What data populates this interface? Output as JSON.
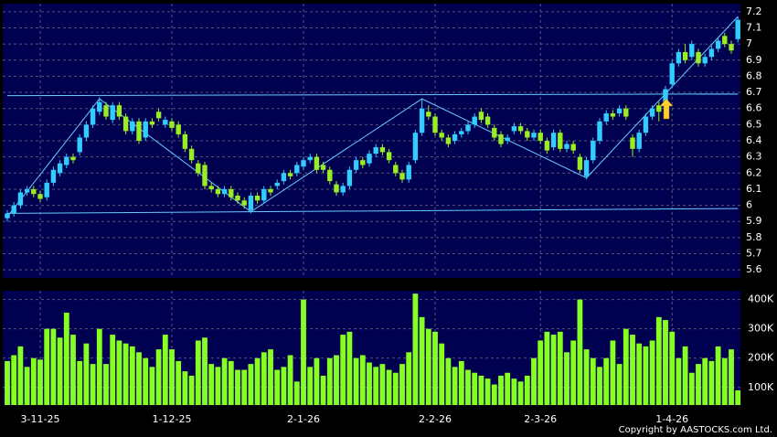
{
  "chart_data": [
    {
      "type": "candlestick",
      "categories": [
        null,
        null,
        null,
        null,
        null,
        "3-11-25",
        null,
        null,
        null,
        null,
        null,
        null,
        null,
        null,
        null,
        null,
        null,
        null,
        null,
        null,
        null,
        null,
        null,
        null,
        null,
        "1-12-25",
        null,
        null,
        null,
        null,
        null,
        null,
        null,
        null,
        null,
        null,
        null,
        null,
        null,
        null,
        null,
        null,
        null,
        null,
        null,
        "2-1-26",
        null,
        null,
        null,
        null,
        null,
        null,
        null,
        null,
        null,
        null,
        null,
        null,
        null,
        null,
        null,
        null,
        null,
        null,
        null,
        "2-2-26",
        null,
        null,
        null,
        null,
        null,
        null,
        null,
        null,
        null,
        null,
        null,
        null,
        null,
        null,
        null,
        "2-3-26",
        null,
        null,
        null,
        null,
        null,
        null,
        null,
        null,
        null,
        null,
        null,
        null,
        null,
        null,
        null,
        null,
        null,
        null,
        null,
        "1-4-26",
        null,
        null,
        null,
        null,
        null,
        null,
        null,
        null,
        null,
        null
      ],
      "open": [
        5.92,
        5.95,
        6.0,
        6.08,
        6.1,
        6.07,
        6.05,
        6.14,
        6.2,
        6.25,
        6.3,
        6.33,
        6.42,
        6.5,
        6.58,
        6.62,
        6.53,
        6.62,
        6.55,
        6.46,
        6.52,
        6.42,
        6.52,
        6.58,
        6.5,
        6.52,
        6.5,
        6.44,
        6.35,
        6.26,
        6.25,
        6.12,
        6.1,
        6.07,
        6.1,
        6.06,
        6.03,
        5.97,
        6.06,
        6.03,
        6.1,
        6.12,
        6.15,
        6.2,
        6.2,
        6.24,
        6.28,
        6.3,
        6.25,
        6.22,
        6.13,
        6.08,
        6.12,
        6.22,
        6.28,
        6.26,
        6.32,
        6.36,
        6.33,
        6.25,
        6.2,
        6.16,
        6.28,
        6.45,
        6.58,
        6.55,
        6.45,
        6.42,
        6.4,
        6.44,
        6.46,
        6.5,
        6.58,
        6.55,
        6.48,
        6.44,
        6.4,
        6.46,
        6.49,
        6.46,
        6.42,
        6.45,
        6.4,
        6.36,
        6.45,
        6.35,
        6.38,
        6.3,
        6.18,
        6.28,
        6.4,
        6.52,
        6.57,
        6.57,
        6.6,
        6.42,
        6.35,
        6.45,
        6.55,
        6.62,
        6.62,
        6.75,
        6.88,
        6.95,
        6.92,
        6.95,
        6.88,
        6.92,
        6.97,
        7.05,
        7.0,
        7.03
      ],
      "high": [
        5.97,
        6.02,
        6.1,
        6.12,
        6.12,
        6.09,
        6.16,
        6.24,
        6.28,
        6.32,
        6.32,
        6.44,
        6.52,
        6.62,
        6.67,
        6.64,
        6.64,
        6.64,
        6.57,
        6.54,
        6.54,
        6.54,
        6.54,
        6.6,
        6.55,
        6.54,
        6.52,
        6.46,
        6.37,
        6.28,
        6.27,
        6.14,
        6.12,
        6.12,
        6.12,
        6.08,
        6.05,
        6.08,
        6.08,
        6.12,
        6.12,
        6.16,
        6.22,
        6.22,
        6.27,
        6.3,
        6.32,
        6.32,
        6.27,
        6.24,
        6.15,
        6.14,
        6.24,
        6.3,
        6.3,
        6.34,
        6.38,
        6.38,
        6.35,
        6.27,
        6.22,
        6.27,
        6.47,
        6.66,
        6.62,
        6.57,
        6.47,
        6.44,
        6.46,
        6.48,
        6.52,
        6.57,
        6.6,
        6.57,
        6.5,
        6.46,
        6.44,
        6.51,
        6.51,
        6.48,
        6.47,
        6.47,
        6.42,
        6.47,
        6.47,
        6.4,
        6.4,
        6.32,
        6.3,
        6.42,
        6.54,
        6.59,
        6.59,
        6.62,
        6.62,
        6.44,
        6.47,
        6.57,
        6.62,
        6.64,
        6.74,
        6.9,
        6.97,
        7.0,
        7.02,
        6.97,
        6.94,
        6.99,
        7.04,
        7.07,
        7.02,
        7.17
      ],
      "low": [
        5.9,
        5.93,
        5.98,
        6.06,
        6.05,
        6.02,
        6.03,
        6.12,
        6.18,
        6.23,
        6.26,
        6.31,
        6.4,
        6.48,
        6.56,
        6.53,
        6.51,
        6.53,
        6.44,
        6.44,
        6.38,
        6.4,
        6.48,
        6.52,
        6.48,
        6.46,
        6.42,
        6.33,
        6.26,
        6.18,
        6.1,
        6.08,
        6.05,
        6.05,
        6.03,
        6.01,
        5.98,
        5.95,
        6.01,
        6.01,
        6.06,
        6.1,
        6.13,
        6.16,
        6.18,
        6.22,
        6.26,
        6.2,
        6.2,
        6.13,
        6.06,
        6.06,
        6.1,
        6.2,
        6.23,
        6.24,
        6.3,
        6.31,
        6.26,
        6.18,
        6.14,
        6.14,
        6.26,
        6.43,
        6.53,
        6.43,
        6.4,
        6.36,
        6.38,
        6.42,
        6.44,
        6.48,
        6.51,
        6.48,
        6.4,
        6.36,
        6.38,
        6.44,
        6.44,
        6.4,
        6.4,
        6.38,
        6.32,
        6.34,
        6.33,
        6.33,
        6.32,
        6.2,
        6.16,
        6.26,
        6.38,
        6.5,
        6.53,
        6.55,
        6.53,
        6.3,
        6.33,
        6.43,
        6.53,
        6.52,
        6.6,
        6.73,
        6.86,
        6.88,
        6.9,
        6.86,
        6.86,
        6.9,
        6.95,
        6.98,
        6.94,
        7.01
      ],
      "close": [
        5.95,
        6.0,
        6.08,
        6.1,
        6.07,
        6.04,
        6.14,
        6.22,
        6.26,
        6.3,
        6.28,
        6.42,
        6.5,
        6.6,
        6.64,
        6.55,
        6.62,
        6.55,
        6.46,
        6.52,
        6.4,
        6.52,
        6.5,
        6.54,
        6.53,
        6.48,
        6.44,
        6.35,
        6.28,
        6.2,
        6.12,
        6.1,
        6.07,
        6.1,
        6.05,
        6.03,
        6.0,
        6.06,
        6.03,
        6.1,
        6.08,
        6.14,
        6.2,
        6.18,
        6.25,
        6.28,
        6.3,
        6.22,
        6.22,
        6.15,
        6.08,
        6.12,
        6.22,
        6.28,
        6.25,
        6.32,
        6.36,
        6.33,
        6.28,
        6.2,
        6.16,
        6.25,
        6.45,
        6.6,
        6.55,
        6.45,
        6.42,
        6.38,
        6.44,
        6.46,
        6.5,
        6.55,
        6.53,
        6.5,
        6.42,
        6.38,
        6.42,
        6.49,
        6.46,
        6.42,
        6.45,
        6.4,
        6.34,
        6.45,
        6.35,
        6.38,
        6.34,
        6.22,
        6.28,
        6.4,
        6.52,
        6.57,
        6.55,
        6.6,
        6.55,
        6.35,
        6.45,
        6.55,
        6.6,
        6.58,
        6.72,
        6.88,
        6.95,
        6.9,
        7.0,
        6.88,
        6.92,
        6.97,
        7.02,
        7.0,
        6.96,
        7.15
      ],
      "up_color": "#33ccff",
      "down_color": "#99ee22",
      "ylim": [
        5.55,
        7.25
      ],
      "yticks": [
        5.6,
        5.7,
        5.8,
        5.9,
        6,
        6.1,
        6.2,
        6.3,
        6.4,
        6.5,
        6.6,
        6.7,
        6.8,
        6.9,
        7,
        7.1,
        7.2
      ],
      "grid": true,
      "trend_color": "#66ccff",
      "trend_lines": [
        {
          "x": [
            0,
            111
          ],
          "y": [
            6.68,
            6.69
          ]
        },
        {
          "x": [
            0,
            111
          ],
          "y": [
            5.95,
            5.98
          ]
        },
        {
          "x": [
            0,
            14,
            37,
            63,
            88,
            111
          ],
          "y": [
            5.93,
            6.66,
            5.96,
            6.66,
            6.17,
            7.17
          ]
        }
      ]
    },
    {
      "type": "bar",
      "color": "#88ff22",
      "values": [
        190000,
        210000,
        240000,
        170000,
        200000,
        195000,
        300000,
        300000,
        270000,
        355000,
        280000,
        190000,
        250000,
        180000,
        300000,
        180000,
        280000,
        260000,
        250000,
        240000,
        220000,
        200000,
        170000,
        230000,
        280000,
        230000,
        190000,
        155000,
        140000,
        260000,
        270000,
        180000,
        170000,
        200000,
        190000,
        160000,
        160000,
        180000,
        200000,
        220000,
        230000,
        160000,
        170000,
        210000,
        120000,
        400000,
        170000,
        200000,
        140000,
        200000,
        210000,
        280000,
        290000,
        200000,
        210000,
        185000,
        170000,
        180000,
        160000,
        150000,
        180000,
        220000,
        420000,
        340000,
        300000,
        290000,
        250000,
        200000,
        170000,
        190000,
        160000,
        150000,
        140000,
        130000,
        110000,
        140000,
        150000,
        130000,
        120000,
        140000,
        200000,
        260000,
        290000,
        280000,
        290000,
        220000,
        260000,
        400000,
        230000,
        200000,
        170000,
        200000,
        260000,
        180000,
        300000,
        280000,
        250000,
        240000,
        260000,
        340000,
        330000,
        290000,
        200000,
        240000,
        150000,
        180000,
        200000,
        190000,
        240000,
        200000,
        230000,
        90000
      ],
      "ylim": [
        40000,
        430000
      ],
      "yticks": [
        {
          "value": 100000,
          "label": "100K"
        },
        {
          "value": 200000,
          "label": "200K"
        },
        {
          "value": 300000,
          "label": "300K"
        },
        {
          "value": 400000,
          "label": "400K"
        }
      ],
      "grid": true,
      "copyright": "Copyright by AASTOCKS.com Ltd."
    }
  ]
}
